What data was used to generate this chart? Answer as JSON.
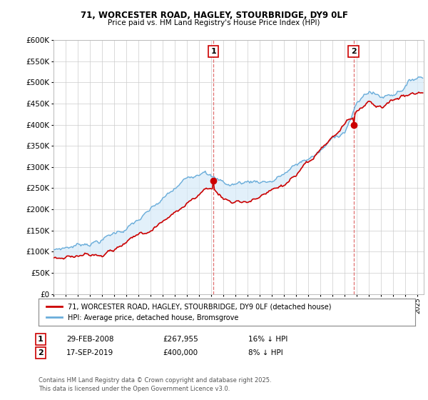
{
  "title_line1": "71, WORCESTER ROAD, HAGLEY, STOURBRIDGE, DY9 0LF",
  "title_line2": "Price paid vs. HM Land Registry's House Price Index (HPI)",
  "legend_line1": "71, WORCESTER ROAD, HAGLEY, STOURBRIDGE, DY9 0LF (detached house)",
  "legend_line2": "HPI: Average price, detached house, Bromsgrove",
  "annotation1_label": "1",
  "annotation1_date": "29-FEB-2008",
  "annotation1_price": "£267,955",
  "annotation1_hpi": "16% ↓ HPI",
  "annotation2_label": "2",
  "annotation2_date": "17-SEP-2019",
  "annotation2_price": "£400,000",
  "annotation2_hpi": "8% ↓ HPI",
  "footer": "Contains HM Land Registry data © Crown copyright and database right 2025.\nThis data is licensed under the Open Government Licence v3.0.",
  "sale1_year": 2008.17,
  "sale1_price": 267955,
  "sale2_year": 2019.72,
  "sale2_price": 400000,
  "price_color": "#cc0000",
  "hpi_color": "#6aadda",
  "hpi_fill_color": "#d6eaf8",
  "background_color": "#ffffff",
  "grid_color": "#cccccc",
  "ylim_min": 0,
  "ylim_max": 600000,
  "ytick_step": 50000,
  "xmin": 1995,
  "xmax": 2025.5
}
